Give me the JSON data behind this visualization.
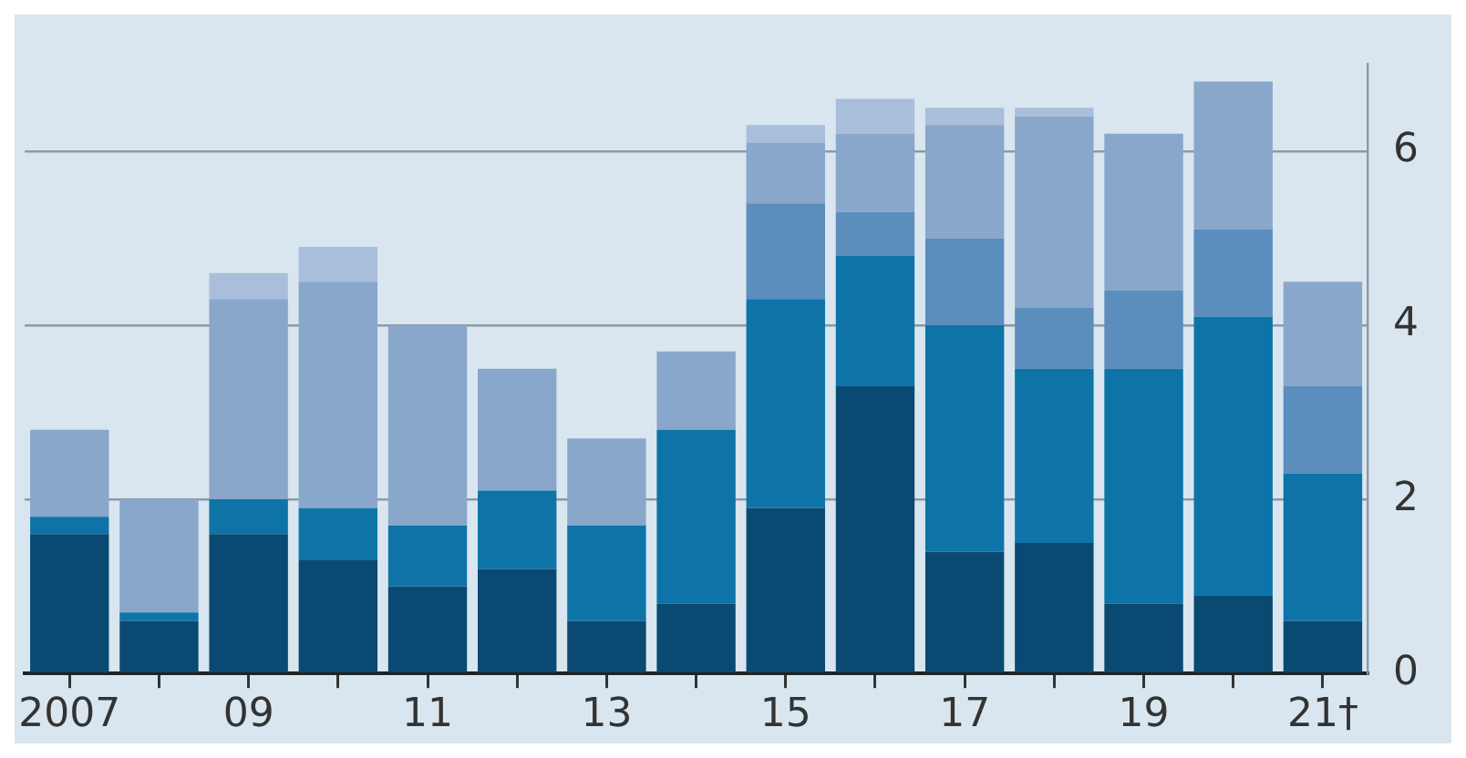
{
  "chart_data": {
    "type": "bar",
    "stacked": true,
    "categories": [
      "2007",
      null,
      "09",
      null,
      "11",
      null,
      "13",
      null,
      "15",
      null,
      "17",
      null,
      "19",
      null,
      "21†"
    ],
    "series": [
      {
        "color": "#0a4a72",
        "values": [
          1.6,
          0.6,
          1.6,
          1.3,
          1.0,
          1.2,
          0.6,
          0.8,
          1.9,
          3.3,
          1.4,
          1.5,
          0.8,
          0.9,
          0.6
        ]
      },
      {
        "color": "#0e74a8",
        "values": [
          0.2,
          0.1,
          0.4,
          0.6,
          0.7,
          0.9,
          1.1,
          2.0,
          2.4,
          1.5,
          2.6,
          2.0,
          2.7,
          3.2,
          1.7
        ]
      },
      {
        "color": "#5b8dbd",
        "values": [
          null,
          null,
          null,
          null,
          null,
          null,
          null,
          null,
          1.1,
          0.5,
          1.0,
          0.7,
          0.9,
          1.0,
          1.0
        ]
      },
      {
        "color": "#89a6cb",
        "values": [
          1.0,
          1.3,
          2.3,
          2.6,
          2.3,
          1.4,
          1.0,
          0.9,
          0.7,
          0.9,
          1.3,
          2.2,
          1.8,
          1.7,
          1.2
        ]
      },
      {
        "color": "#a9bedb",
        "values": [
          null,
          null,
          0.3,
          0.4,
          null,
          null,
          null,
          null,
          0.2,
          0.4,
          0.2,
          0.1,
          null,
          null,
          null
        ]
      }
    ],
    "ylim": [
      0,
      7
    ],
    "yticks": [
      0,
      2,
      4,
      6
    ],
    "grid": "y",
    "legend": false
  }
}
